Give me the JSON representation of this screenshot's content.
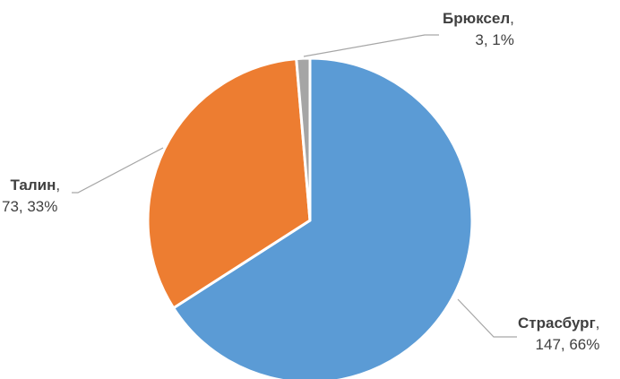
{
  "chart_data": {
    "type": "pie",
    "title": "",
    "categories": [
      "Страсбург",
      "Талин",
      "Брюксел"
    ],
    "values": [
      147,
      73,
      3
    ],
    "percent_labels": [
      "66%",
      "33%",
      "1%"
    ],
    "colors": [
      "#5B9BD5",
      "#ED7D31",
      "#A5A5A5"
    ],
    "start_angle_deg": 0,
    "direction": "clockwise",
    "labels": [
      {
        "name": "Страсбург",
        "rest": "147, 66%"
      },
      {
        "name": "Талин",
        "rest": "73, 33%"
      },
      {
        "name": "Брюксел",
        "rest": "3, 1%"
      }
    ]
  }
}
